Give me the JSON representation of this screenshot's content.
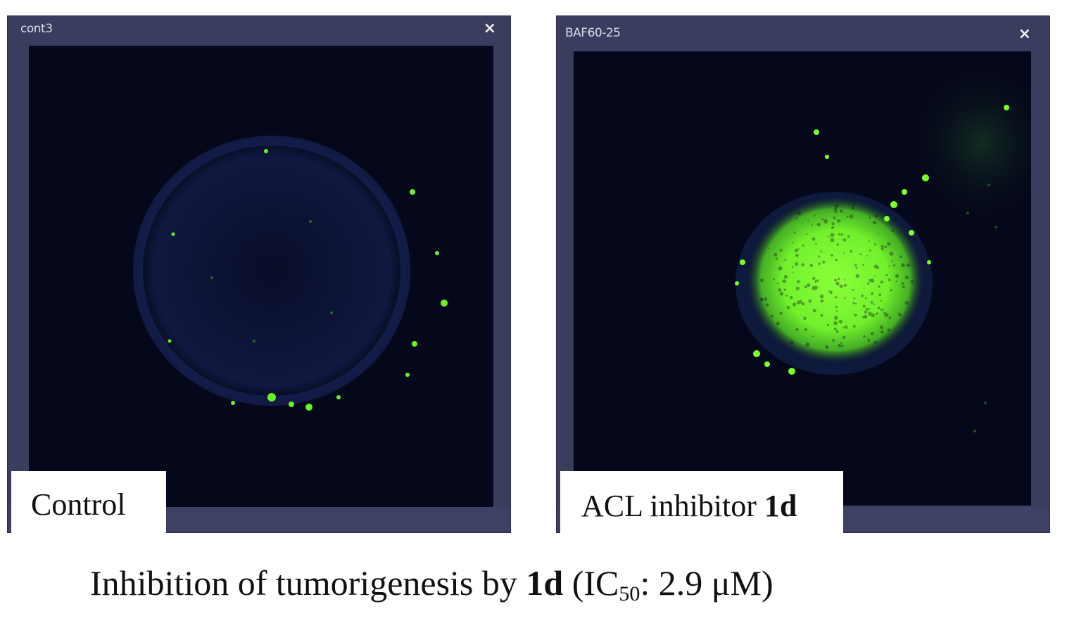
{
  "panels": [
    {
      "window_title": "cont3",
      "close_symbol": "×",
      "label_text": "Control",
      "label_bold": ""
    },
    {
      "window_title": "BAF60-25",
      "close_symbol": "×",
      "label_text": "ACL inhibitor ",
      "label_bold": "1d"
    }
  ],
  "caption": {
    "prefix": "Inhibition of tumorigenesis by ",
    "bold": "1d",
    "paren_open": " (IC",
    "subscript": "50",
    "suffix": ": 2.9 μM)"
  },
  "colors": {
    "window_frame": "#3a3d5e",
    "image_background": "#05081a",
    "fluorescence_green": "#7dff2e",
    "nucleus_blue": "#23306e"
  },
  "icons": [
    "close-icon",
    "close-icon"
  ]
}
